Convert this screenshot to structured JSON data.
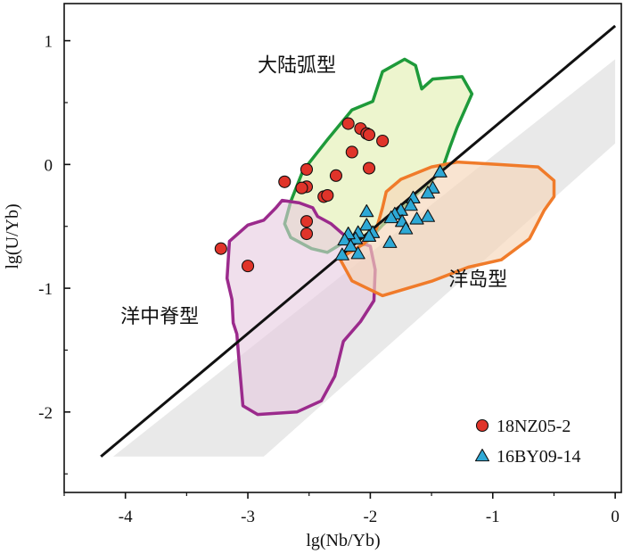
{
  "chart_data": {
    "type": "scatter",
    "title": "",
    "xlabel": "lg(Nb/Yb)",
    "ylabel": "lg(U/Yb)",
    "xlim": [
      -4.5,
      0.05
    ],
    "ylim": [
      -2.65,
      1.3
    ],
    "xticks": [
      -4,
      -3,
      -2,
      -1,
      0
    ],
    "xtick_labels": [
      "-4",
      "-3",
      "-2",
      "-1",
      "0"
    ],
    "yticks": [
      1,
      0,
      -1,
      -2
    ],
    "ytick_labels": [
      "1",
      "0",
      "-1",
      "-2"
    ],
    "grid": false,
    "legend_position": "bottom-right",
    "series": [
      {
        "name": "18NZ05-2",
        "marker": "circle",
        "color": "#e0342a",
        "points": [
          [
            -2.18,
            0.33
          ],
          [
            -2.08,
            0.29
          ],
          [
            -2.03,
            0.25
          ],
          [
            -2.01,
            0.24
          ],
          [
            -1.9,
            0.19
          ],
          [
            -2.15,
            0.1
          ],
          [
            -2.01,
            -0.03
          ],
          [
            -2.52,
            -0.04
          ],
          [
            -2.7,
            -0.14
          ],
          [
            -2.28,
            -0.09
          ],
          [
            -2.52,
            -0.18
          ],
          [
            -2.56,
            -0.19
          ],
          [
            -2.38,
            -0.26
          ],
          [
            -2.35,
            -0.25
          ],
          [
            -2.52,
            -0.46
          ],
          [
            -2.52,
            -0.56
          ],
          [
            -3.22,
            -0.68
          ],
          [
            -3.0,
            -0.82
          ]
        ]
      },
      {
        "name": "16BY09-14",
        "marker": "triangle",
        "color": "#2ea9d6",
        "points": [
          [
            -1.43,
            -0.06
          ],
          [
            -1.49,
            -0.19
          ],
          [
            -1.53,
            -0.23
          ],
          [
            -1.65,
            -0.27
          ],
          [
            -1.67,
            -0.33
          ],
          [
            -1.75,
            -0.37
          ],
          [
            -1.8,
            -0.4
          ],
          [
            -1.83,
            -0.43
          ],
          [
            -1.74,
            -0.46
          ],
          [
            -1.53,
            -0.42
          ],
          [
            -2.03,
            -0.38
          ],
          [
            -2.03,
            -0.49
          ],
          [
            -1.98,
            -0.55
          ],
          [
            -2.01,
            -0.58
          ],
          [
            -2.1,
            -0.55
          ],
          [
            -2.12,
            -0.6
          ],
          [
            -2.18,
            -0.56
          ],
          [
            -2.21,
            -0.61
          ],
          [
            -2.16,
            -0.66
          ],
          [
            -2.23,
            -0.73
          ],
          [
            -2.1,
            -0.72
          ],
          [
            -1.84,
            -0.63
          ],
          [
            -1.71,
            -0.52
          ],
          [
            -1.62,
            -0.44
          ]
        ]
      }
    ],
    "regions": [
      {
        "label": "大陆弧型",
        "stroke": "#1e9a3a",
        "fill": "#eaf3c6",
        "fill_opacity": 0.85,
        "label_pos": [
          -2.6,
          0.75
        ],
        "polygon": [
          [
            -1.9,
            0.75
          ],
          [
            -1.72,
            0.85
          ],
          [
            -1.63,
            0.8
          ],
          [
            -1.58,
            0.61
          ],
          [
            -1.49,
            0.69
          ],
          [
            -1.25,
            0.71
          ],
          [
            -1.17,
            0.57
          ],
          [
            -1.29,
            0.3
          ],
          [
            -1.35,
            0.14
          ],
          [
            -1.42,
            -0.06
          ],
          [
            -1.9,
            -0.49
          ],
          [
            -2.05,
            -0.65
          ],
          [
            -2.2,
            -0.62
          ],
          [
            -2.35,
            -0.71
          ],
          [
            -2.48,
            -0.68
          ],
          [
            -2.65,
            -0.59
          ],
          [
            -2.7,
            -0.48
          ],
          [
            -2.65,
            -0.3
          ],
          [
            -2.55,
            -0.05
          ],
          [
            -2.35,
            0.2
          ],
          [
            -2.15,
            0.44
          ],
          [
            -1.98,
            0.51
          ]
        ]
      },
      {
        "label": "洋中脊型",
        "stroke": "#9b2a8c",
        "fill": "#e6c9df",
        "fill_opacity": 0.6,
        "label_pos": [
          -3.72,
          -1.28
        ],
        "polygon": [
          [
            -2.72,
            -0.29
          ],
          [
            -2.77,
            -0.35
          ],
          [
            -2.87,
            -0.45
          ],
          [
            -3.0,
            -0.49
          ],
          [
            -3.15,
            -0.62
          ],
          [
            -3.17,
            -0.92
          ],
          [
            -3.13,
            -1.09
          ],
          [
            -3.12,
            -1.28
          ],
          [
            -3.09,
            -1.37
          ],
          [
            -3.07,
            -1.61
          ],
          [
            -3.04,
            -1.95
          ],
          [
            -2.92,
            -2.02
          ],
          [
            -2.6,
            -2.0
          ],
          [
            -2.4,
            -1.91
          ],
          [
            -2.29,
            -1.71
          ],
          [
            -2.22,
            -1.43
          ],
          [
            -2.08,
            -1.27
          ],
          [
            -1.97,
            -1.1
          ],
          [
            -1.96,
            -0.85
          ],
          [
            -2.0,
            -0.66
          ],
          [
            -2.18,
            -0.6
          ],
          [
            -2.32,
            -0.48
          ],
          [
            -2.43,
            -0.42
          ],
          [
            -2.47,
            -0.35
          ],
          [
            -2.58,
            -0.31
          ]
        ]
      },
      {
        "label": "洋岛型",
        "stroke": "#f07b2a",
        "fill": "#f6d5b9",
        "fill_opacity": 0.65,
        "label_pos": [
          -1.12,
          -0.98
        ],
        "polygon": [
          [
            -1.5,
            -0.02
          ],
          [
            -1.29,
            0.02
          ],
          [
            -0.95,
            0.0
          ],
          [
            -0.63,
            -0.02
          ],
          [
            -0.5,
            -0.13
          ],
          [
            -0.5,
            -0.26
          ],
          [
            -0.58,
            -0.37
          ],
          [
            -0.7,
            -0.6
          ],
          [
            -0.93,
            -0.77
          ],
          [
            -1.2,
            -0.83
          ],
          [
            -1.49,
            -0.94
          ],
          [
            -1.9,
            -1.06
          ],
          [
            -2.15,
            -0.94
          ],
          [
            -2.25,
            -0.76
          ],
          [
            -2.05,
            -0.64
          ],
          [
            -1.95,
            -0.52
          ],
          [
            -1.9,
            -0.35
          ],
          [
            -1.87,
            -0.22
          ],
          [
            -1.75,
            -0.12
          ]
        ]
      }
    ],
    "array_band": {
      "fill": "#e9e9e9",
      "polygon": [
        [
          -4.1,
          -2.36
        ],
        [
          -2.87,
          -2.36
        ],
        [
          0.0,
          0.17
        ],
        [
          0.0,
          0.85
        ]
      ]
    },
    "reference_line": {
      "color": "#111111",
      "points": [
        [
          -4.2,
          -2.36
        ],
        [
          0.0,
          1.12
        ]
      ]
    }
  }
}
